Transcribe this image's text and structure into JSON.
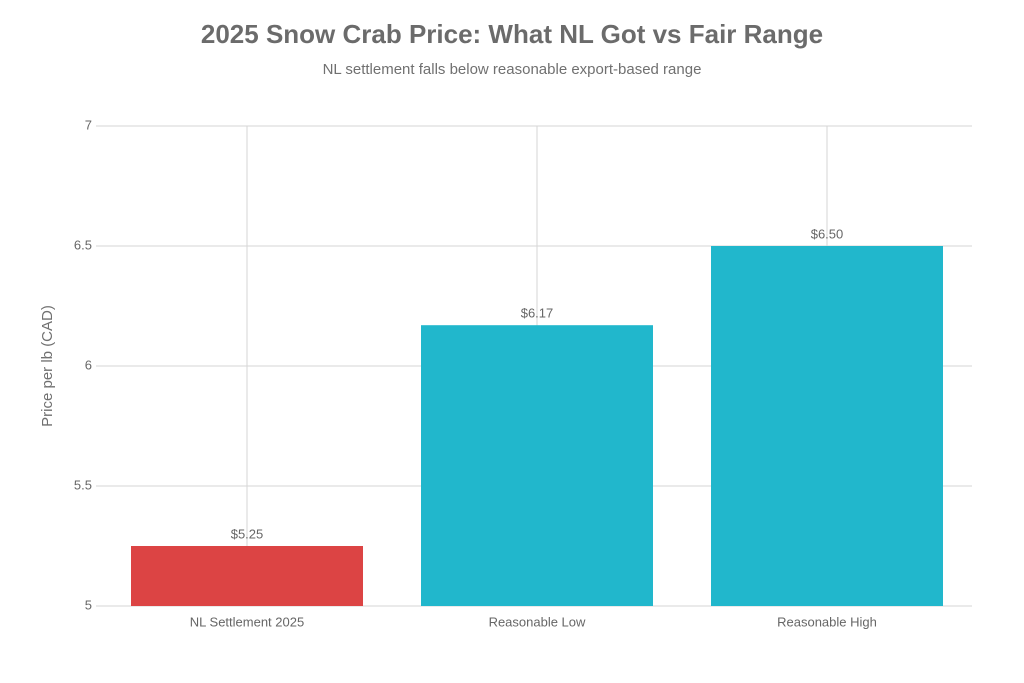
{
  "chart_data": {
    "type": "bar",
    "title": "2025 Snow Crab Price: What NL Got vs Fair Range",
    "subtitle": "NL settlement falls below reasonable export-based range",
    "y_label": "Price per lb (CAD)",
    "categories": [
      "NL Settlement 2025",
      "Reasonable Low",
      "Reasonable High"
    ],
    "values": [
      5.25,
      6.17,
      6.5
    ],
    "value_labels": [
      "$5.25",
      "$6.17",
      "$6.50"
    ],
    "colors": [
      "#dc4444",
      "#21b7cc",
      "#21b7cc"
    ],
    "ylim": [
      5,
      7
    ],
    "yticks": [
      5,
      5.5,
      6,
      6.5,
      7
    ],
    "grid": true
  }
}
